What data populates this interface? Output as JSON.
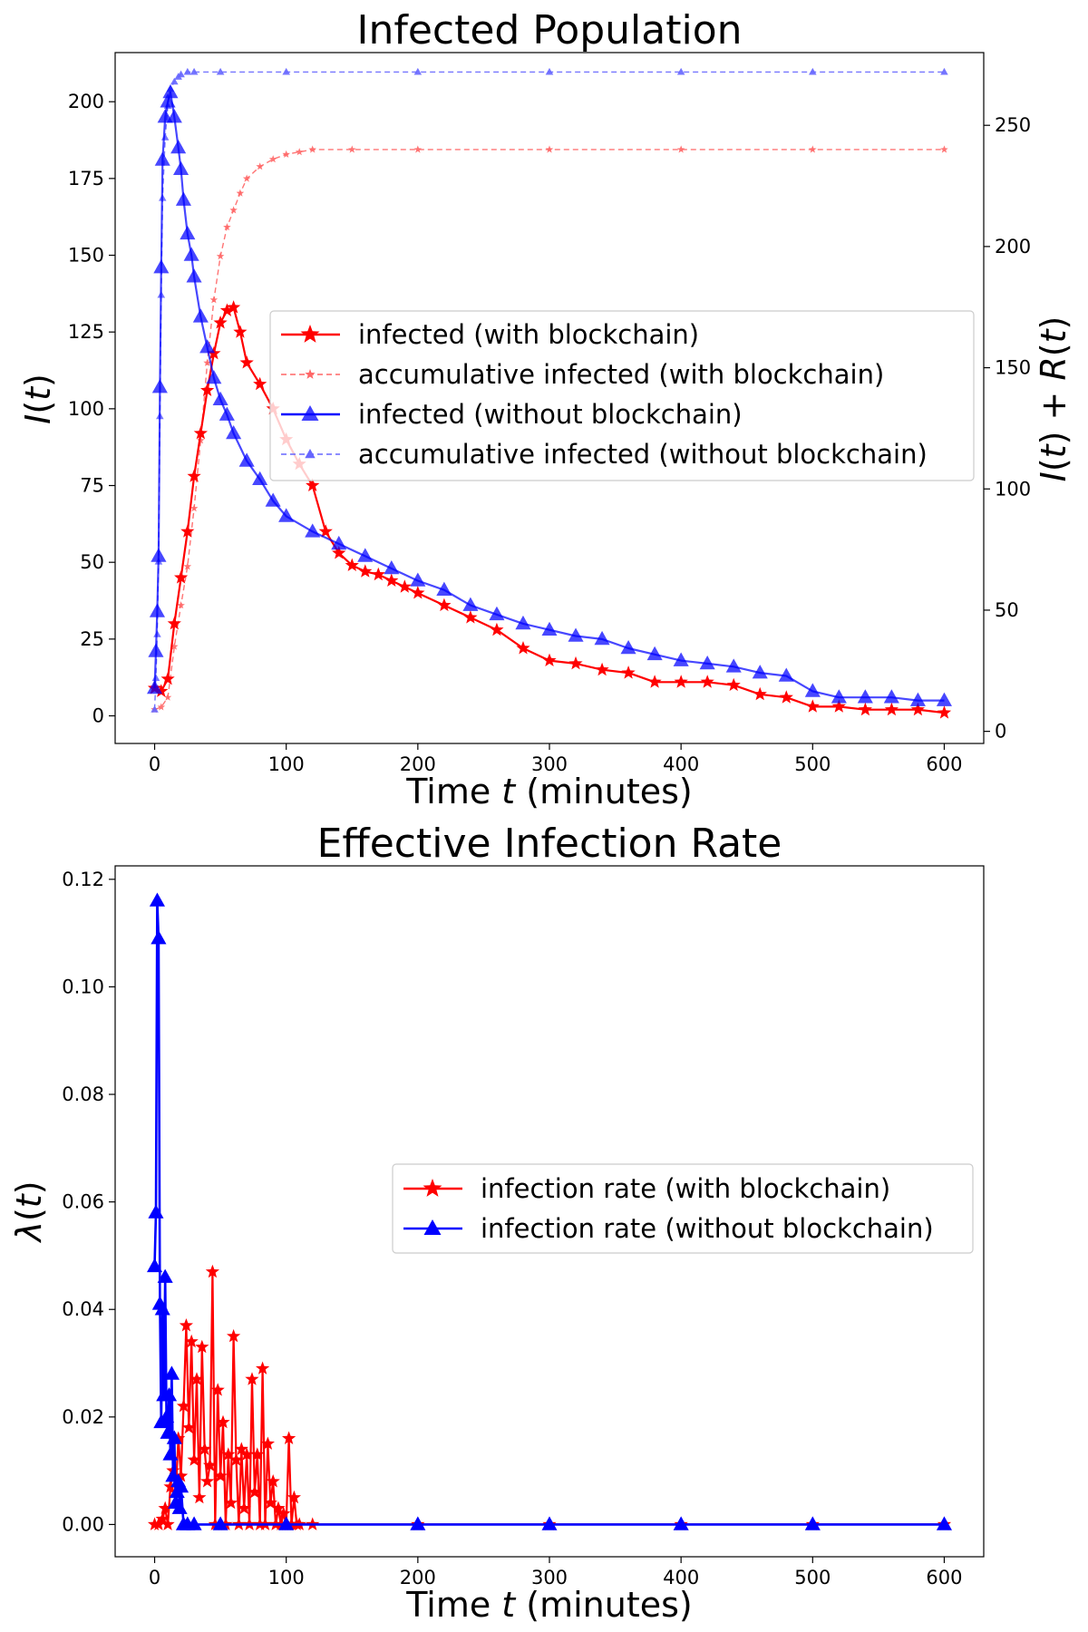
{
  "chart_data": [
    {
      "type": "line",
      "title": "Infected Population",
      "xlabel": "Time t (minutes)",
      "ylabel": "I(t)",
      "y2label": "I(t) + R(t)",
      "xlim": [
        -30,
        630
      ],
      "ylim": [
        -9,
        216
      ],
      "y2lim": [
        -5,
        280
      ],
      "xticks": [
        0,
        100,
        200,
        300,
        400,
        500,
        600
      ],
      "yticks": [
        0,
        25,
        50,
        75,
        100,
        125,
        150,
        175,
        200
      ],
      "y2ticks": [
        0,
        50,
        100,
        150,
        200,
        250
      ],
      "legend_position": "center-right",
      "grid": false,
      "series": [
        {
          "name": "infected (with blockchain)",
          "axis": "left",
          "color": "#ff0000",
          "marker": "star",
          "x": [
            0,
            5,
            10,
            15,
            20,
            25,
            30,
            35,
            40,
            45,
            50,
            55,
            60,
            65,
            70,
            80,
            90,
            100,
            110,
            120,
            130,
            140,
            150,
            160,
            170,
            180,
            190,
            200,
            220,
            240,
            260,
            280,
            300,
            320,
            340,
            360,
            380,
            400,
            420,
            440,
            460,
            480,
            500,
            520,
            540,
            560,
            580,
            600
          ],
          "y": [
            9,
            8,
            12,
            30,
            45,
            60,
            78,
            92,
            106,
            118,
            128,
            132,
            133,
            125,
            115,
            108,
            100,
            90,
            82,
            75,
            60,
            53,
            49,
            47,
            46,
            44,
            42,
            40,
            36,
            32,
            28,
            22,
            18,
            17,
            15,
            14,
            11,
            11,
            11,
            10,
            7,
            6,
            3,
            3,
            2,
            2,
            2,
            1
          ]
        },
        {
          "name": "accumulative infected (with blockchain)",
          "axis": "right",
          "color": "#ff0000",
          "marker": "star",
          "x": [
            0,
            5,
            10,
            15,
            20,
            25,
            30,
            35,
            40,
            45,
            50,
            55,
            60,
            65,
            70,
            80,
            90,
            100,
            110,
            120,
            150,
            200,
            300,
            400,
            500,
            600
          ],
          "y": [
            9,
            10,
            14,
            35,
            52,
            68,
            92,
            120,
            152,
            178,
            196,
            208,
            215,
            222,
            228,
            233,
            236,
            238,
            239,
            240,
            240,
            240,
            240,
            240,
            240,
            240
          ]
        },
        {
          "name": "infected (without blockchain)",
          "axis": "left",
          "color": "#0000ff",
          "marker": "triangle",
          "x": [
            0,
            1,
            2,
            3,
            4,
            5,
            6,
            8,
            10,
            12,
            15,
            18,
            20,
            22,
            25,
            28,
            30,
            35,
            40,
            45,
            50,
            55,
            60,
            70,
            80,
            90,
            100,
            120,
            140,
            160,
            180,
            200,
            220,
            240,
            260,
            280,
            300,
            320,
            340,
            360,
            380,
            400,
            420,
            440,
            460,
            480,
            500,
            520,
            540,
            560,
            580,
            600
          ],
          "y": [
            9,
            21,
            34,
            52,
            107,
            146,
            181,
            195,
            200,
            203,
            195,
            185,
            178,
            168,
            157,
            150,
            143,
            130,
            120,
            110,
            103,
            98,
            92,
            83,
            77,
            70,
            65,
            60,
            56,
            52,
            48,
            44,
            41,
            36,
            33,
            30,
            28,
            26,
            25,
            22,
            20,
            18,
            17,
            16,
            14,
            13,
            8,
            6,
            6,
            6,
            5,
            5
          ]
        },
        {
          "name": "accumulative infected (without blockchain)",
          "axis": "right",
          "color": "#0000ff",
          "marker": "triangle",
          "x": [
            0,
            1,
            2,
            3,
            4,
            5,
            6,
            8,
            10,
            12,
            15,
            18,
            20,
            25,
            30,
            50,
            100,
            200,
            300,
            400,
            500,
            600
          ],
          "y": [
            9,
            22,
            40,
            70,
            130,
            180,
            220,
            245,
            258,
            265,
            268,
            270,
            271,
            272,
            272,
            272,
            272,
            272,
            272,
            272,
            272,
            272
          ]
        }
      ]
    },
    {
      "type": "line",
      "title": "Effective Infection Rate",
      "xlabel": "Time t (minutes)",
      "ylabel": "λ(t)",
      "xlim": [
        -30,
        630
      ],
      "ylim": [
        -0.006,
        0.1225
      ],
      "xticks": [
        0,
        100,
        200,
        300,
        400,
        500,
        600
      ],
      "yticks": [
        0.0,
        0.02,
        0.04,
        0.06,
        0.08,
        0.1,
        0.12
      ],
      "ytick_labels": [
        "0.00",
        "0.02",
        "0.04",
        "0.06",
        "0.08",
        "0.10",
        "0.12"
      ],
      "legend_position": "center-right",
      "grid": false,
      "series": [
        {
          "name": "infection rate (with blockchain)",
          "color": "#ff0000",
          "marker": "star",
          "x": [
            0,
            3,
            6,
            8,
            10,
            12,
            14,
            16,
            18,
            20,
            22,
            24,
            26,
            28,
            30,
            32,
            34,
            36,
            38,
            40,
            42,
            44,
            46,
            48,
            50,
            52,
            54,
            56,
            58,
            60,
            62,
            64,
            66,
            68,
            70,
            72,
            74,
            76,
            78,
            80,
            82,
            84,
            86,
            88,
            90,
            92,
            94,
            96,
            98,
            100,
            102,
            104,
            106,
            108,
            110,
            120,
            200,
            300,
            400,
            500,
            600
          ],
          "y": [
            0.0,
            0.0,
            0.001,
            0.003,
            0.0,
            0.007,
            0.01,
            0.006,
            0.016,
            0.009,
            0.022,
            0.037,
            0.018,
            0.034,
            0.012,
            0.027,
            0.005,
            0.033,
            0.014,
            0.008,
            0.011,
            0.047,
            0.0,
            0.025,
            0.009,
            0.019,
            0.0,
            0.013,
            0.004,
            0.035,
            0.012,
            0.0,
            0.014,
            0.003,
            0.013,
            0.0,
            0.027,
            0.006,
            0.013,
            0.0,
            0.029,
            0.0,
            0.015,
            0.004,
            0.008,
            0.0,
            0.003,
            0.0,
            0.002,
            0.0,
            0.016,
            0.0,
            0.005,
            0.0,
            0.0,
            0.0,
            0.0,
            0.0,
            0.0,
            0.0,
            0.0
          ]
        },
        {
          "name": "infection rate (without blockchain)",
          "color": "#0000ff",
          "marker": "triangle",
          "x": [
            0,
            1,
            2,
            3,
            4,
            5,
            6,
            7,
            8,
            9,
            10,
            11,
            12,
            13,
            14,
            15,
            16,
            17,
            18,
            19,
            20,
            22,
            25,
            30,
            50,
            100,
            200,
            300,
            400,
            500,
            600
          ],
          "y": [
            0.048,
            0.058,
            0.116,
            0.109,
            0.041,
            0.019,
            0.04,
            0.024,
            0.046,
            0.02,
            0.017,
            0.024,
            0.013,
            0.028,
            0.009,
            0.016,
            0.004,
            0.006,
            0.008,
            0.003,
            0.007,
            0.0,
            0.0,
            0.0,
            0.0,
            0.0,
            0.0,
            0.0,
            0.0,
            0.0,
            0.0
          ]
        }
      ]
    }
  ]
}
